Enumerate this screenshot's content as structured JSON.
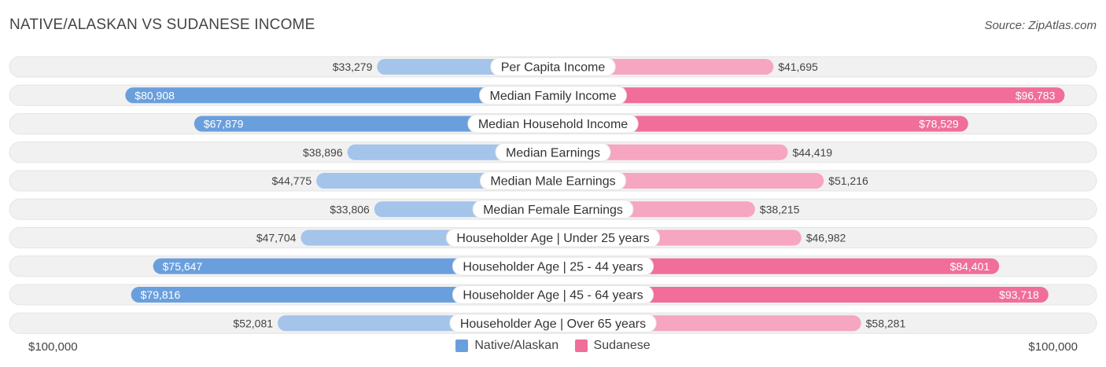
{
  "header": {
    "title": "NATIVE/ALASKAN VS SUDANESE INCOME",
    "source": "Source: ZipAtlas.com"
  },
  "axis": {
    "left_label": "$100,000",
    "right_label": "$100,000"
  },
  "legend": {
    "left": "Native/Alaskan",
    "right": "Sudanese"
  },
  "colors": {
    "left_strong": "#6a9fdd",
    "left_light": "#a4c4ea",
    "right_strong": "#f06e99",
    "right_light": "#f6a6c0",
    "track": "#f1f1f1"
  },
  "chart_data": {
    "type": "bar",
    "orientation": "horizontal-diverging",
    "title": "NATIVE/ALASKAN VS SUDANESE INCOME",
    "xlim": [
      0,
      100000
    ],
    "categories": [
      "Per Capita Income",
      "Median Family Income",
      "Median Household Income",
      "Median Earnings",
      "Median Male Earnings",
      "Median Female Earnings",
      "Householder Age | Under 25 years",
      "Householder Age | 25 - 44 years",
      "Householder Age | 45 - 64 years",
      "Householder Age | Over 65 years"
    ],
    "series": [
      {
        "name": "Native/Alaskan",
        "values": [
          33279,
          80908,
          67879,
          38896,
          44775,
          33806,
          47704,
          75647,
          79816,
          52081
        ],
        "labels": [
          "$33,279",
          "$80,908",
          "$67,879",
          "$38,896",
          "$44,775",
          "$33,806",
          "$47,704",
          "$75,647",
          "$79,816",
          "$52,081"
        ]
      },
      {
        "name": "Sudanese",
        "values": [
          41695,
          96783,
          78529,
          44419,
          51216,
          38215,
          46982,
          84401,
          93718,
          58281
        ],
        "labels": [
          "$41,695",
          "$96,783",
          "$78,529",
          "$44,419",
          "$51,216",
          "$38,215",
          "$46,982",
          "$84,401",
          "$93,718",
          "$58,281"
        ]
      }
    ]
  }
}
